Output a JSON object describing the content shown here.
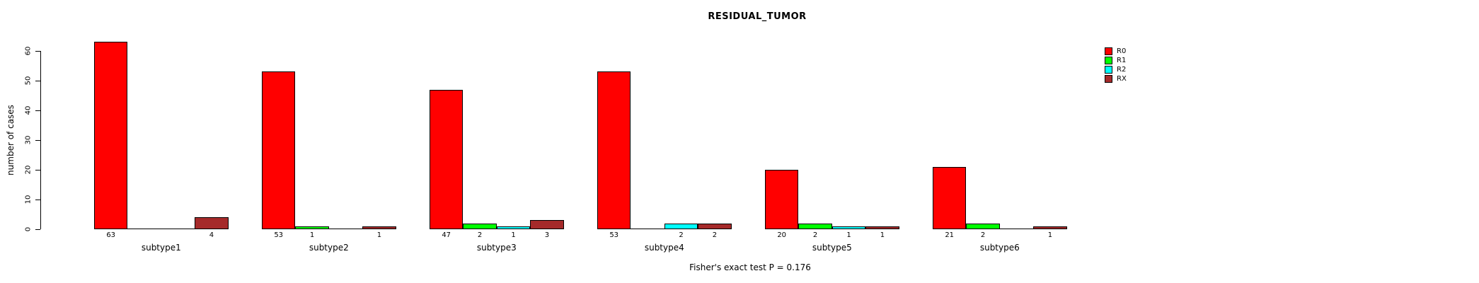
{
  "title": "RESIDUAL_TUMOR",
  "ylabel": "number of cases",
  "annotation": "Fisher's exact test P = 0.176",
  "colors": {
    "R0": "#FF0000",
    "R1": "#00FF00",
    "R2": "#00FFFF",
    "RX": "#A52A2A",
    "axis": "#000000",
    "background": "#FFFFFF"
  },
  "legend": {
    "position": "right",
    "items": [
      {
        "label": "R0",
        "color": "#FF0000"
      },
      {
        "label": "R1",
        "color": "#00FF00"
      },
      {
        "label": "R2",
        "color": "#00FFFF"
      },
      {
        "label": "RX",
        "color": "#A52A2A"
      }
    ]
  },
  "chart_data": {
    "type": "bar",
    "title": "RESIDUAL_TUMOR",
    "xlabel": "",
    "ylabel": "number of cases",
    "annotation": "Fisher's exact test P = 0.176",
    "categories": [
      "subtype1",
      "subtype2",
      "subtype3",
      "subtype4",
      "subtype5",
      "subtype6"
    ],
    "series": [
      {
        "name": "R0",
        "color": "#FF0000",
        "values": [
          63,
          53,
          47,
          53,
          20,
          21
        ]
      },
      {
        "name": "R1",
        "color": "#00FF00",
        "values": [
          0,
          1,
          2,
          0,
          2,
          2
        ]
      },
      {
        "name": "R2",
        "color": "#00FFFF",
        "values": [
          0,
          0,
          1,
          2,
          1,
          0
        ]
      },
      {
        "name": "RX",
        "color": "#A52A2A",
        "values": [
          4,
          1,
          3,
          2,
          1,
          1
        ]
      }
    ],
    "bar_value_labels_shown_only_when_nonzero": true,
    "yticks": [
      0,
      10,
      20,
      30,
      40,
      50,
      60
    ],
    "ylim": [
      0,
      63
    ],
    "grid": false,
    "legend_position": "right"
  }
}
